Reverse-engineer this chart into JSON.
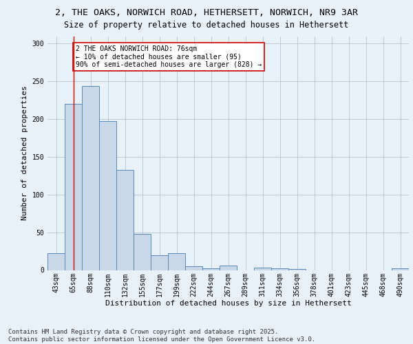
{
  "title_line1": "2, THE OAKS, NORWICH ROAD, HETHERSETT, NORWICH, NR9 3AR",
  "title_line2": "Size of property relative to detached houses in Hethersett",
  "xlabel": "Distribution of detached houses by size in Hethersett",
  "ylabel": "Number of detached properties",
  "bar_labels": [
    "43sqm",
    "65sqm",
    "88sqm",
    "110sqm",
    "132sqm",
    "155sqm",
    "177sqm",
    "199sqm",
    "222sqm",
    "244sqm",
    "267sqm",
    "289sqm",
    "311sqm",
    "334sqm",
    "356sqm",
    "378sqm",
    "401sqm",
    "423sqm",
    "445sqm",
    "468sqm",
    "490sqm"
  ],
  "bar_values": [
    22,
    220,
    244,
    197,
    133,
    48,
    20,
    22,
    5,
    2,
    6,
    0,
    3,
    2,
    1,
    0,
    0,
    0,
    0,
    0,
    2
  ],
  "bar_color": "#c8d8e8",
  "bar_edge_color": "#5588bb",
  "vline_x": 1,
  "vline_color": "#cc0000",
  "annotation_text": "2 THE OAKS NORWICH ROAD: 76sqm\n← 10% of detached houses are smaller (95)\n90% of semi-detached houses are larger (828) →",
  "annotation_box_color": "#ffffff",
  "annotation_box_edge": "#cc0000",
  "bg_color": "#e8f0f8",
  "plot_bg_color": "#e8f0f8",
  "footer_text": "Contains HM Land Registry data © Crown copyright and database right 2025.\nContains public sector information licensed under the Open Government Licence v3.0.",
  "ylim": [
    0,
    310
  ],
  "title_fontsize": 9.5,
  "subtitle_fontsize": 8.5,
  "axis_label_fontsize": 8,
  "tick_fontsize": 7,
  "annotation_fontsize": 7,
  "footer_fontsize": 6.5
}
